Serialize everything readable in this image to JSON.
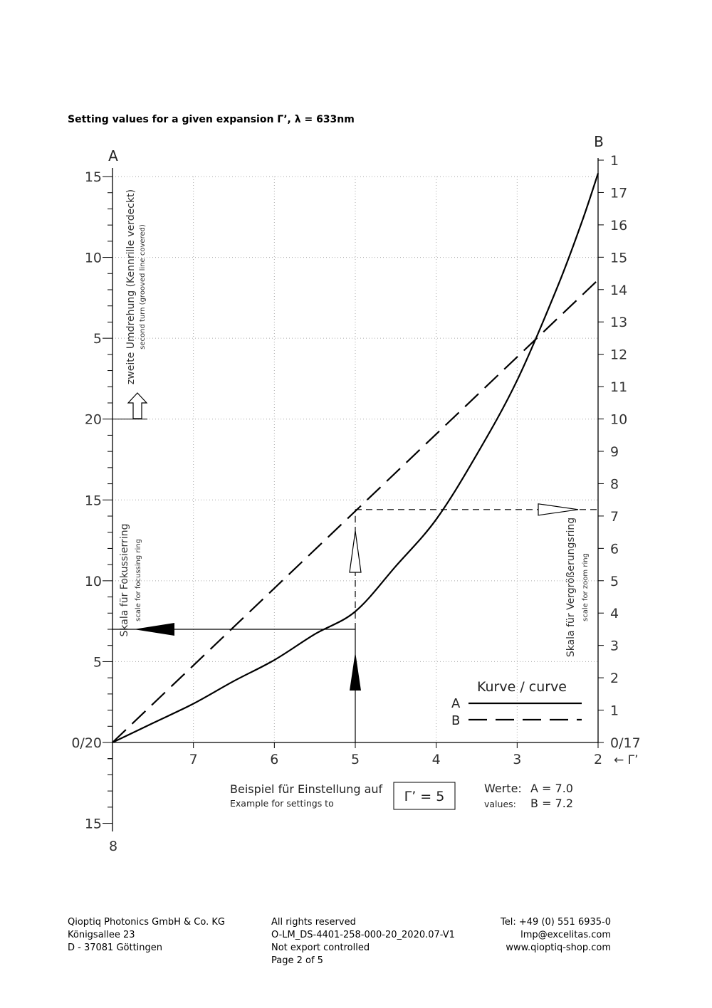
{
  "page": {
    "title": "Setting values for a given expansion Γ’, λ = 633nm"
  },
  "chart_data": {
    "type": "line",
    "x_axis": {
      "label": "← Γ’",
      "range": [
        8,
        2
      ],
      "ticks": [
        "7",
        "6",
        "5",
        "4",
        "3",
        "2"
      ]
    },
    "left_axis": {
      "name": "A",
      "ticks": [
        "15",
        "10",
        "5",
        "20",
        "15",
        "10",
        "5",
        "0/20",
        "15",
        "8"
      ],
      "upper_label": "zweite Umdrehung (Kennrille verdeckt)",
      "upper_sublabel": "second turn (grooved line covered)",
      "lower_label": "Skala für Fokussierring",
      "lower_sublabel": "scale for focussing ring"
    },
    "right_axis": {
      "name": "B",
      "ticks": [
        "0/17",
        "1",
        "2",
        "3",
        "4",
        "5",
        "6",
        "7",
        "8",
        "9",
        "10",
        "11",
        "12",
        "13",
        "14",
        "15",
        "16",
        "17",
        "1"
      ],
      "label": "Skala für Vergrößerungsring",
      "sublabel": "scale for zoom ring"
    },
    "legend": {
      "title": "Kurve / curve",
      "position": "bottom-right",
      "items": [
        "A",
        "B"
      ]
    },
    "series": [
      {
        "name": "A",
        "style": "solid",
        "x": [
          8,
          7.5,
          7,
          6.5,
          6,
          5.5,
          5,
          4.5,
          4,
          3.5,
          3,
          2.5,
          2.2,
          2
        ],
        "y": [
          0,
          1.2,
          2.4,
          3.8,
          5.1,
          6.7,
          8.1,
          10.9,
          13.8,
          17.8,
          22.4,
          28.2,
          32.2,
          35.2
        ]
      },
      {
        "name": "B",
        "style": "dashed",
        "x": [
          8,
          2
        ],
        "y": [
          0,
          14.3
        ]
      }
    ],
    "example": {
      "label": "Beispiel für Einstellung auf",
      "sublabel": "Example for settings to",
      "setting": "Γ’ = 5",
      "values_label": "Werte:",
      "values_sublabel": "values:",
      "value_a": "A = 7.0",
      "value_b": "B = 7.2"
    }
  },
  "footer": {
    "company": "Qioptiq Photonics GmbH & Co. KG",
    "street": "Königsallee 23",
    "city": "D - 37081 Göttingen",
    "rights": "All rights reserved",
    "doc_id": "O-LM_DS-4401-258-000-20_2020.07-V1",
    "export": "Not export controlled",
    "page": "Page 2 of 5",
    "tel": "Tel: +49 (0) 551 6935-0",
    "email": "lmp@excelitas.com",
    "web": "www.qioptiq-shop.com"
  }
}
